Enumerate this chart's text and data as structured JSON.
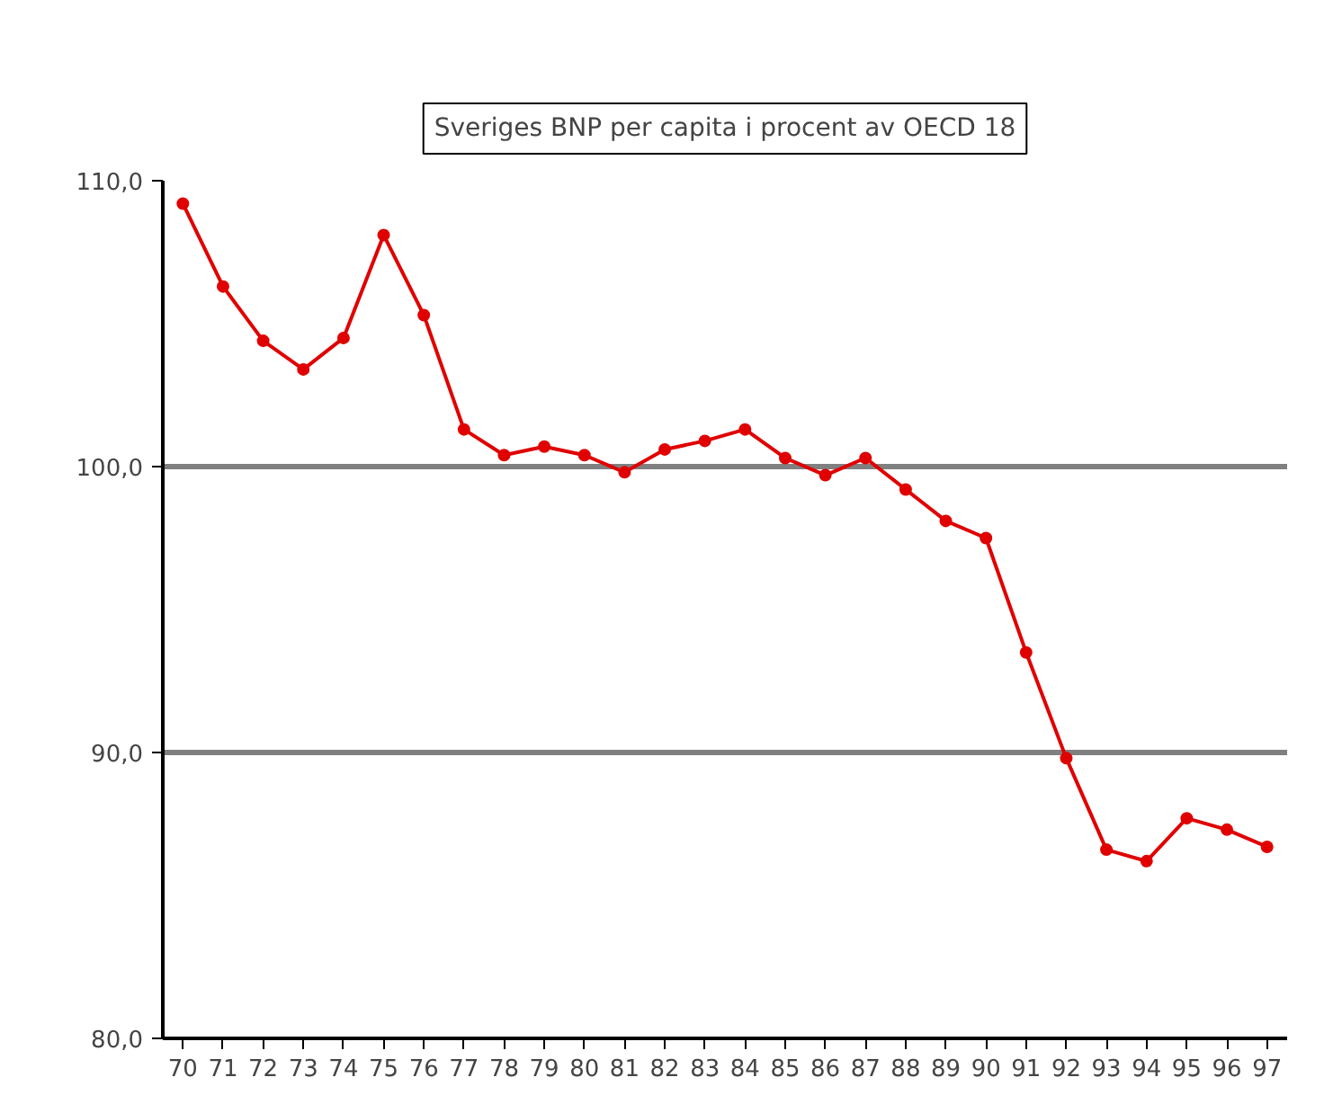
{
  "chart_data": {
    "type": "line",
    "title": "Sveriges BNP per capita i procent av OECD 18",
    "categories": [
      "70",
      "71",
      "72",
      "73",
      "74",
      "75",
      "76",
      "77",
      "78",
      "79",
      "80",
      "81",
      "82",
      "83",
      "84",
      "85",
      "86",
      "87",
      "88",
      "89",
      "90",
      "91",
      "92",
      "93",
      "94",
      "95",
      "96",
      "97"
    ],
    "series": [
      {
        "color": "#e00000",
        "values": [
          109.2,
          106.3,
          104.4,
          103.4,
          104.5,
          108.1,
          105.3,
          101.3,
          100.4,
          100.7,
          100.4,
          99.8,
          100.6,
          100.9,
          101.3,
          100.3,
          99.7,
          100.3,
          99.2,
          98.1,
          97.5,
          93.5,
          89.8,
          86.6,
          86.2,
          87.7,
          87.3,
          86.7
        ]
      }
    ],
    "ylim": [
      80,
      110
    ],
    "yticks": [
      {
        "value": 80,
        "label": "80,0"
      },
      {
        "value": 90,
        "label": "90,0"
      },
      {
        "value": 100,
        "label": "100,0"
      },
      {
        "value": 110,
        "label": "110,0"
      }
    ],
    "grid": "y",
    "marker": "circle",
    "line_style": "solid"
  }
}
